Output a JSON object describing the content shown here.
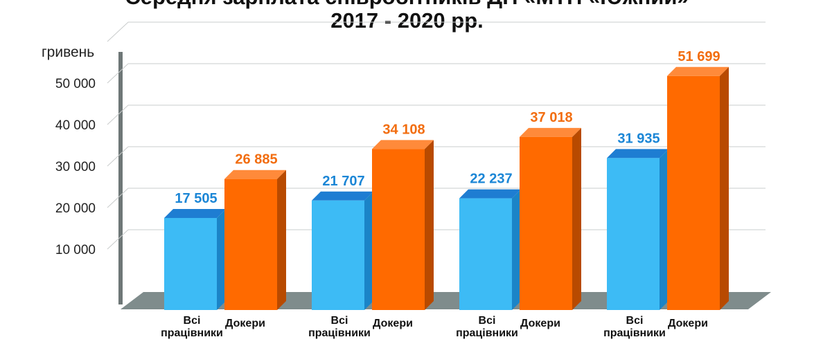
{
  "chart_data": {
    "type": "bar",
    "title": "Середня зарплата співробітників ДП «МТП «Южний»",
    "subtitle": "2017 - 2020 рр.",
    "ylabel": "гривень",
    "xlabel": "",
    "ylim": [
      0,
      60000
    ],
    "yticks": [
      10000,
      20000,
      30000,
      40000,
      50000
    ],
    "ytick_labels": [
      "10 000",
      "20 000",
      "30 000",
      "40 000",
      "50 000"
    ],
    "grid": true,
    "categories": [
      "Всі працівники",
      "Докери"
    ],
    "category_lines": [
      [
        "Всі",
        "працівники"
      ],
      [
        "Докери"
      ]
    ],
    "groups": [
      {
        "values": [
          17505,
          26885
        ],
        "labels": [
          "17 505",
          "26 885"
        ]
      },
      {
        "values": [
          21707,
          34108
        ],
        "labels": [
          "21 707",
          "34 108"
        ]
      },
      {
        "values": [
          22237,
          37018
        ],
        "labels": [
          "22 237",
          "37 018"
        ]
      },
      {
        "values": [
          31935,
          51699
        ],
        "labels": [
          "31 935",
          "51 699"
        ]
      }
    ],
    "colors": {
      "series_1": {
        "front": "#3dbbf5",
        "top": "#1e7dd2",
        "side": "#1b84c7",
        "label": "#1b86d6"
      },
      "series_2": {
        "front": "#ff6a00",
        "top": "#ff8a3a",
        "side": "#b84a00",
        "label": "#f26d0f"
      },
      "floor": "#7f8c8c",
      "axis": "#6e7777",
      "grid": "#c9cccc"
    }
  }
}
